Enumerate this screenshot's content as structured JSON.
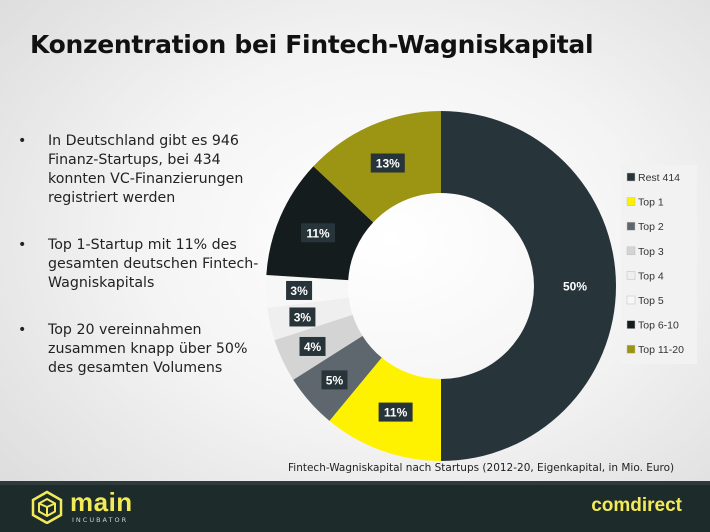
{
  "title": "Konzentration bei Fintech-Wagniskapital",
  "bullets": [
    {
      "text": "In Deutschland gibt es 946 Finanz-Startups, bei 434 konnten VC-Finanzierungen registriert werden"
    },
    {
      "text": "Top 1-Startup mit 11% des gesamten deutschen Fintech-Wagniskapitals"
    },
    {
      "text": "Top 20 vereinnahmen zusammen knapp über 50% des gesamten Volumens"
    }
  ],
  "bullet_symbol": "•",
  "caption": "Fintech-Wagniskapital nach Startups (2012-20, Eigenkapital, in Mio. Euro)",
  "footer": {
    "brand_left": "main",
    "brand_left_sub": "INCUBATOR",
    "brand_right": "comdirect"
  },
  "colors": {
    "brand_yellow": "#f3ea57",
    "footer_bg": "#1d2b2b"
  },
  "chart_data": {
    "type": "pie",
    "variant": "donut",
    "title": "",
    "legend_placement": "right",
    "series": [
      {
        "name": "Rest 414",
        "value": 50,
        "label": "50%",
        "color": "#27343a"
      },
      {
        "name": "Top 1",
        "value": 11,
        "label": "11%",
        "color": "#fff200"
      },
      {
        "name": "Top 2",
        "value": 5,
        "label": "5%",
        "color": "#5e676d"
      },
      {
        "name": "Top 3",
        "value": 4,
        "label": "4%",
        "color": "#d4d4d4"
      },
      {
        "name": "Top 4",
        "value": 3,
        "label": "3%",
        "color": "#efefef"
      },
      {
        "name": "Top 5",
        "value": 3,
        "label": "3%",
        "color": "#f7f7f7"
      },
      {
        "name": "Top 6-10",
        "value": 11,
        "label": "11%",
        "color": "#151c1e"
      },
      {
        "name": "Top 11-20",
        "value": 13,
        "label": "13%",
        "color": "#9c9413"
      }
    ]
  }
}
